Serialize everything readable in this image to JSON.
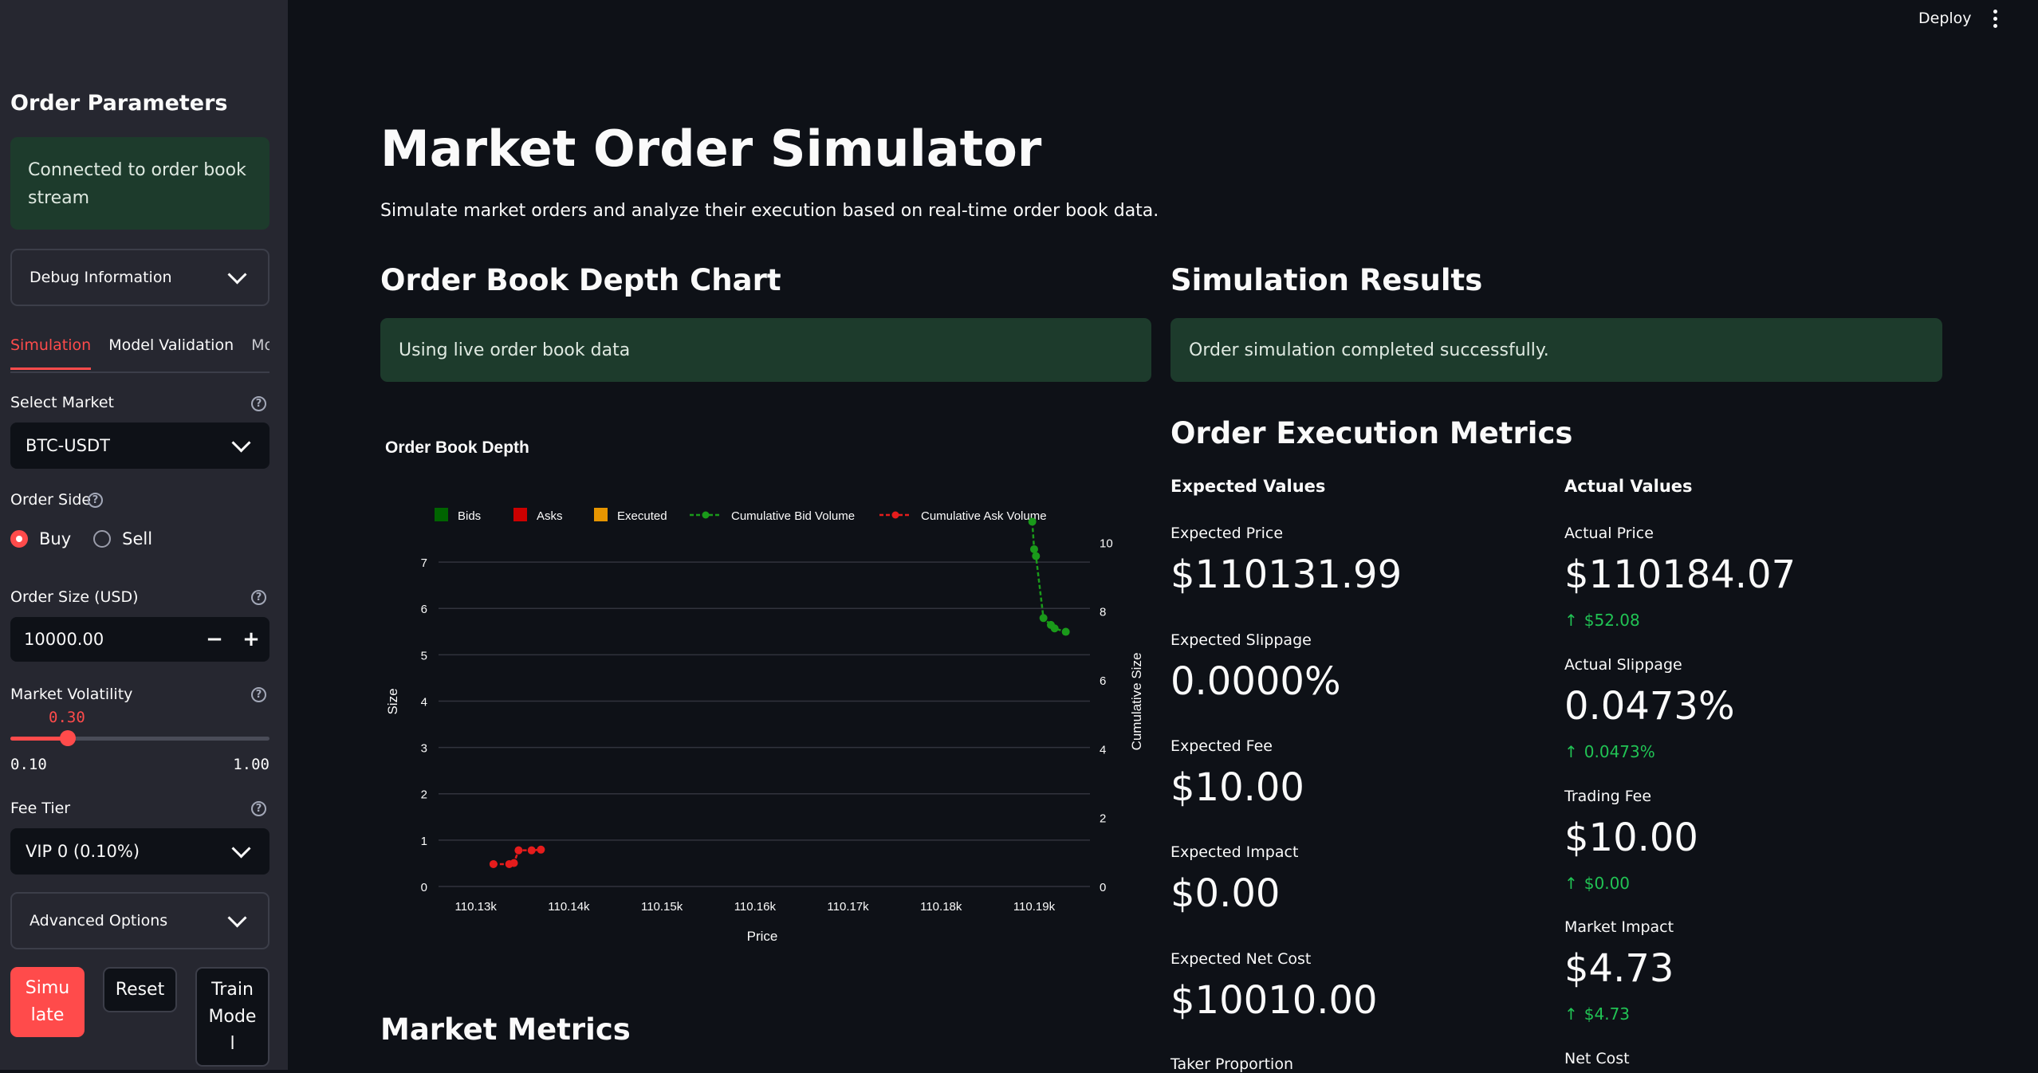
{
  "sidebar": {
    "title": "Order Parameters",
    "status_message": "Connected to order book stream",
    "debug_label": "Debug Information",
    "tabs": [
      {
        "label": "Simulation"
      },
      {
        "label": "Model Validation"
      },
      {
        "label": "Mode"
      }
    ],
    "market": {
      "label": "Select Market",
      "value": "BTC-USDT"
    },
    "order_side": {
      "label": "Order Side",
      "options": [
        "Buy",
        "Sell"
      ],
      "selected": "Buy"
    },
    "order_size": {
      "label": "Order Size (USD)",
      "value": "10000.00",
      "minus": "−",
      "plus": "+"
    },
    "volatility": {
      "label": "Market Volatility",
      "value": "0.30",
      "min": "0.10",
      "max": "1.00"
    },
    "fee_tier": {
      "label": "Fee Tier",
      "value": "VIP 0 (0.10%)"
    },
    "advanced_label": "Advanced Options",
    "buttons": {
      "simulate": "Simu late",
      "reset": "Reset",
      "train": "Train Mode l"
    }
  },
  "header": {
    "deploy": "Deploy"
  },
  "main": {
    "title": "Market Order Simulator",
    "subtitle": "Simulate market orders and analyze their execution based on real-time order book data.",
    "depth_heading": "Order Book Depth Chart",
    "depth_alert": "Using live order book data",
    "results_heading": "Simulation Results",
    "results_alert": "Order simulation completed successfully.",
    "metrics_heading": "Order Execution Metrics",
    "market_metrics_heading": "Market Metrics",
    "expected": {
      "heading": "Expected Values",
      "items": [
        {
          "label": "Expected Price",
          "value": "$110131.99"
        },
        {
          "label": "Expected Slippage",
          "value": "0.0000%"
        },
        {
          "label": "Expected Fee",
          "value": "$10.00"
        },
        {
          "label": "Expected Impact",
          "value": "$0.00"
        },
        {
          "label": "Expected Net Cost",
          "value": "$10010.00"
        },
        {
          "label": "Taker Proportion"
        }
      ]
    },
    "actual": {
      "heading": "Actual Values",
      "items": [
        {
          "label": "Actual Price",
          "value": "$110184.07",
          "delta": "$52.08"
        },
        {
          "label": "Actual Slippage",
          "value": "0.0473%",
          "delta": "0.0473%"
        },
        {
          "label": "Trading Fee",
          "value": "$10.00",
          "delta": "$0.00"
        },
        {
          "label": "Market Impact",
          "value": "$4.73",
          "delta": "$4.73"
        },
        {
          "label": "Net Cost"
        }
      ]
    }
  },
  "colors": {
    "accent": "#ff4b4b",
    "success_bg": "#1d3b2c",
    "delta_up": "#21c354",
    "bids": "#006400",
    "asks": "#cc0000",
    "executed": "#e69500"
  },
  "chart_data": {
    "type": "scatter",
    "title": "Order Book Depth",
    "xlabel": "Price",
    "ylabel": "Size",
    "y2label": "Cumulative Size",
    "xlim": [
      110126,
      110196
    ],
    "ylim": [
      0,
      7.5
    ],
    "y2lim": [
      0,
      10.1
    ],
    "x_ticks": [
      "110.13k",
      "110.14k",
      "110.15k",
      "110.16k",
      "110.17k",
      "110.18k",
      "110.19k"
    ],
    "x_tick_values": [
      110130,
      110140,
      110150,
      110160,
      110170,
      110180,
      110190
    ],
    "y_ticks": [
      0,
      1,
      2,
      3,
      4,
      5,
      6,
      7
    ],
    "y2_ticks": [
      0,
      2,
      4,
      6,
      8,
      10
    ],
    "legend": [
      "Bids",
      "Asks",
      "Executed",
      "Cumulative Bid Volume",
      "Cumulative Ask Volume"
    ],
    "legend_position": "top",
    "series": [
      {
        "name": "Cumulative Bid Volume",
        "axis": "y2",
        "style": "dashed-markers",
        "x": [
          110189.8,
          110190.0,
          110190.2,
          110191.0,
          110191.8,
          110192.2,
          110193.4
        ],
        "y": [
          10.6,
          9.8,
          9.6,
          7.8,
          7.6,
          7.5,
          7.4
        ]
      },
      {
        "name": "Cumulative Ask Volume",
        "axis": "y2",
        "style": "dashed-markers",
        "x": [
          110131.9,
          110133.6,
          110134.1,
          110134.6,
          110136.0,
          110137.0
        ],
        "y": [
          0.65,
          0.65,
          0.68,
          1.05,
          1.05,
          1.07
        ]
      }
    ]
  }
}
